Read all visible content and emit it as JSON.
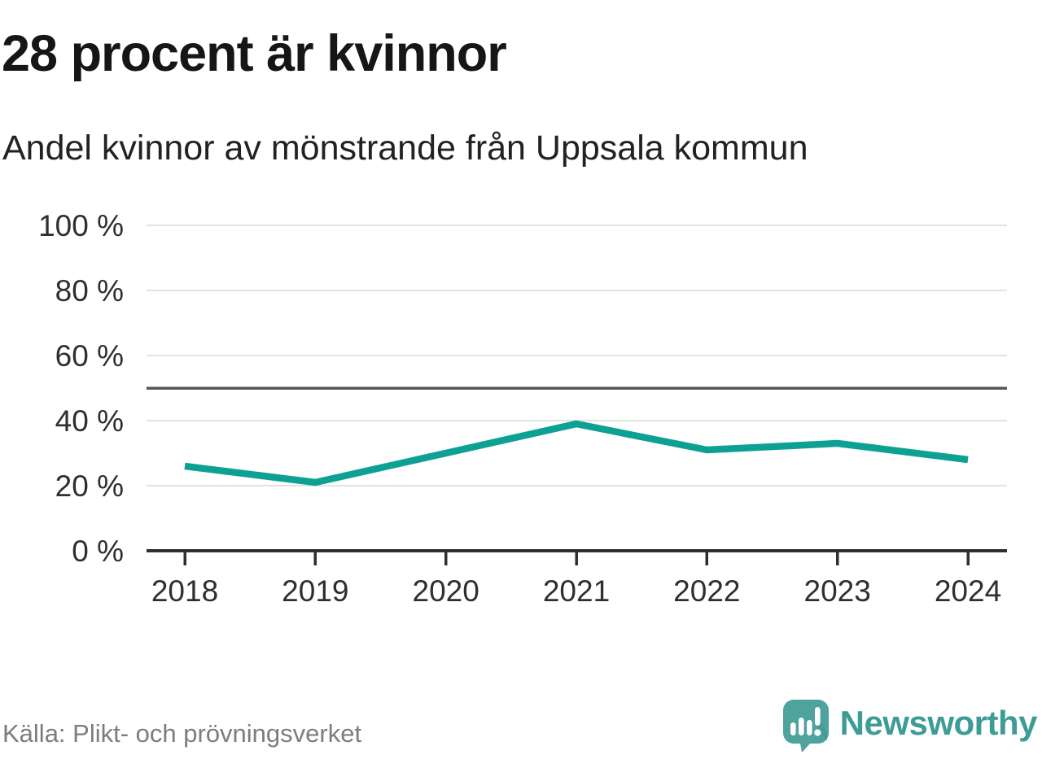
{
  "header": {
    "title": "28 procent är kvinnor",
    "subtitle": "Andel kvinnor av mönstrande från Uppsala kommun"
  },
  "chart_data": {
    "type": "line",
    "title": "28 procent är kvinnor",
    "subtitle": "Andel kvinnor av mönstrande från Uppsala kommun",
    "x": [
      2018,
      2019,
      2020,
      2021,
      2022,
      2023,
      2024
    ],
    "series": [
      {
        "name": "Andel kvinnor av mönstrande",
        "values": [
          26,
          21,
          30,
          39,
          31,
          33,
          28
        ]
      }
    ],
    "xlabel": "",
    "ylabel": "",
    "ylim": [
      0,
      100
    ],
    "yticks": [
      0,
      20,
      40,
      60,
      80,
      100
    ],
    "ytick_suffix": " %",
    "reference_line_y": 50,
    "grid": true,
    "legend": "none",
    "line_color": "#0da194",
    "grid_color": "#e2e2e2",
    "reference_line_color": "#55565c",
    "axis_color": "#2e2e33",
    "tick_label_color": "#2e2e33"
  },
  "footer": {
    "source": "Källa: Plikt- och prövningsverket",
    "brand": "Newsworthy"
  },
  "colors": {
    "accent_teal": "#0da194",
    "logo_bubble_teal": "#4ea39c",
    "logo_shadow_teal": "#42968f",
    "wordmark_teal": "#3d9c96",
    "title_color": "#161616",
    "subtitle_color": "#222225",
    "source_color": "#7c7c82",
    "background": "#ffffff"
  }
}
